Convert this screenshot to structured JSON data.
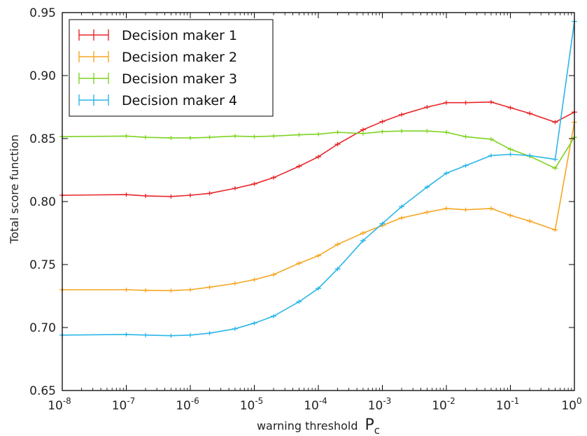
{
  "chart_data": {
    "type": "line",
    "title": "",
    "xlabel": "warning threshold",
    "xlabel_symbol": "P",
    "xlabel_subscript": "c",
    "ylabel": "Total score function",
    "xscale": "log",
    "xlim": [
      1e-08,
      1
    ],
    "ylim": [
      0.65,
      0.95
    ],
    "grid": false,
    "legend_position": "top-left",
    "x_ticks": [
      {
        "value": 1e-08,
        "base": "10",
        "exp": "-8"
      },
      {
        "value": 1e-07,
        "base": "10",
        "exp": "-7"
      },
      {
        "value": 1e-06,
        "base": "10",
        "exp": "-6"
      },
      {
        "value": 1e-05,
        "base": "10",
        "exp": "-5"
      },
      {
        "value": 0.0001,
        "base": "10",
        "exp": "-4"
      },
      {
        "value": 0.001,
        "base": "10",
        "exp": "-3"
      },
      {
        "value": 0.01,
        "base": "10",
        "exp": "-2"
      },
      {
        "value": 0.1,
        "base": "10",
        "exp": "-1"
      },
      {
        "value": 1,
        "base": "10",
        "exp": "0"
      }
    ],
    "y_ticks": [
      "0.65",
      "0.70",
      "0.75",
      "0.80",
      "0.85",
      "0.90",
      "0.95"
    ],
    "x": [
      1e-08,
      1e-07,
      2e-07,
      5e-07,
      1e-06,
      2e-06,
      5e-06,
      1e-05,
      2e-05,
      5e-05,
      0.0001,
      0.0002,
      0.0005,
      0.001,
      0.002,
      0.005,
      0.01,
      0.02,
      0.05,
      0.1,
      0.2,
      0.5,
      1
    ],
    "series": [
      {
        "name": "Decision maker 1",
        "color": "#e8262b",
        "values": [
          0.805,
          0.8055,
          0.8045,
          0.804,
          0.805,
          0.8065,
          0.8105,
          0.814,
          0.819,
          0.828,
          0.8355,
          0.8455,
          0.857,
          0.8635,
          0.869,
          0.875,
          0.8785,
          0.8785,
          0.879,
          0.8745,
          0.87,
          0.863,
          0.871
        ]
      },
      {
        "name": "Decision maker 2",
        "color": "#f5a623",
        "values": [
          0.73,
          0.73,
          0.7295,
          0.7293,
          0.73,
          0.732,
          0.735,
          0.738,
          0.742,
          0.751,
          0.757,
          0.766,
          0.775,
          0.781,
          0.787,
          0.7915,
          0.7945,
          0.7935,
          0.7945,
          0.789,
          0.7845,
          0.7775,
          0.863
        ]
      },
      {
        "name": "Decision maker 3",
        "color": "#7ed321",
        "values": [
          0.8515,
          0.852,
          0.851,
          0.8505,
          0.8505,
          0.851,
          0.852,
          0.8515,
          0.852,
          0.853,
          0.8535,
          0.855,
          0.854,
          0.8555,
          0.856,
          0.856,
          0.855,
          0.8515,
          0.8495,
          0.8415,
          0.836,
          0.8265,
          0.851
        ]
      },
      {
        "name": "Decision maker 4",
        "color": "#29b6e8",
        "values": [
          0.694,
          0.6945,
          0.694,
          0.6935,
          0.694,
          0.6955,
          0.699,
          0.7035,
          0.709,
          0.7205,
          0.731,
          0.7465,
          0.769,
          0.7825,
          0.796,
          0.8115,
          0.8225,
          0.8285,
          0.8365,
          0.8375,
          0.8365,
          0.8335,
          0.943
        ]
      }
    ]
  }
}
